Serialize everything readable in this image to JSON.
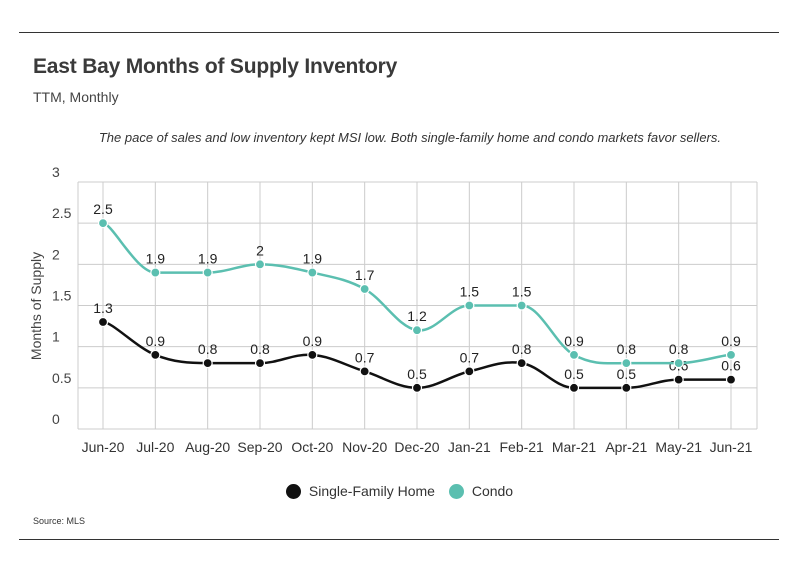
{
  "header": {
    "title": "East Bay Months of Supply Inventory",
    "subtitle": "TTM, Monthly",
    "note": "The pace of sales and low inventory kept MSI low. Both single-family home and condo markets favor sellers."
  },
  "footer": {
    "source": "Source:  MLS"
  },
  "colors": {
    "single_family": "#111111",
    "condo": "#5bbfb0",
    "grid": "#cccccc"
  },
  "chart_data": {
    "type": "line",
    "title": "East Bay Months of Supply Inventory",
    "subtitle": "TTM, Monthly",
    "xlabel": "",
    "ylabel": "Months of Supply",
    "ylim": [
      0,
      3
    ],
    "yticks": [
      "0",
      "0.5",
      "1",
      "1.5",
      "2",
      "2.5",
      "3"
    ],
    "categories": [
      "Jun-20",
      "Jul-20",
      "Aug-20",
      "Sep-20",
      "Oct-20",
      "Nov-20",
      "Dec-20",
      "Jan-21",
      "Feb-21",
      "Mar-21",
      "Apr-21",
      "May-21",
      "Jun-21"
    ],
    "series": [
      {
        "name": "Single-Family Home",
        "color": "#111111",
        "values": [
          1.3,
          0.9,
          0.8,
          0.8,
          0.9,
          0.7,
          0.5,
          0.7,
          0.8,
          0.5,
          0.5,
          0.6,
          0.6
        ]
      },
      {
        "name": "Condo",
        "color": "#5bbfb0",
        "values": [
          2.5,
          1.9,
          1.9,
          2,
          1.9,
          1.7,
          1.2,
          1.5,
          1.5,
          0.9,
          0.8,
          0.8,
          0.9
        ]
      }
    ],
    "grid": true,
    "legend_position": "bottom"
  }
}
